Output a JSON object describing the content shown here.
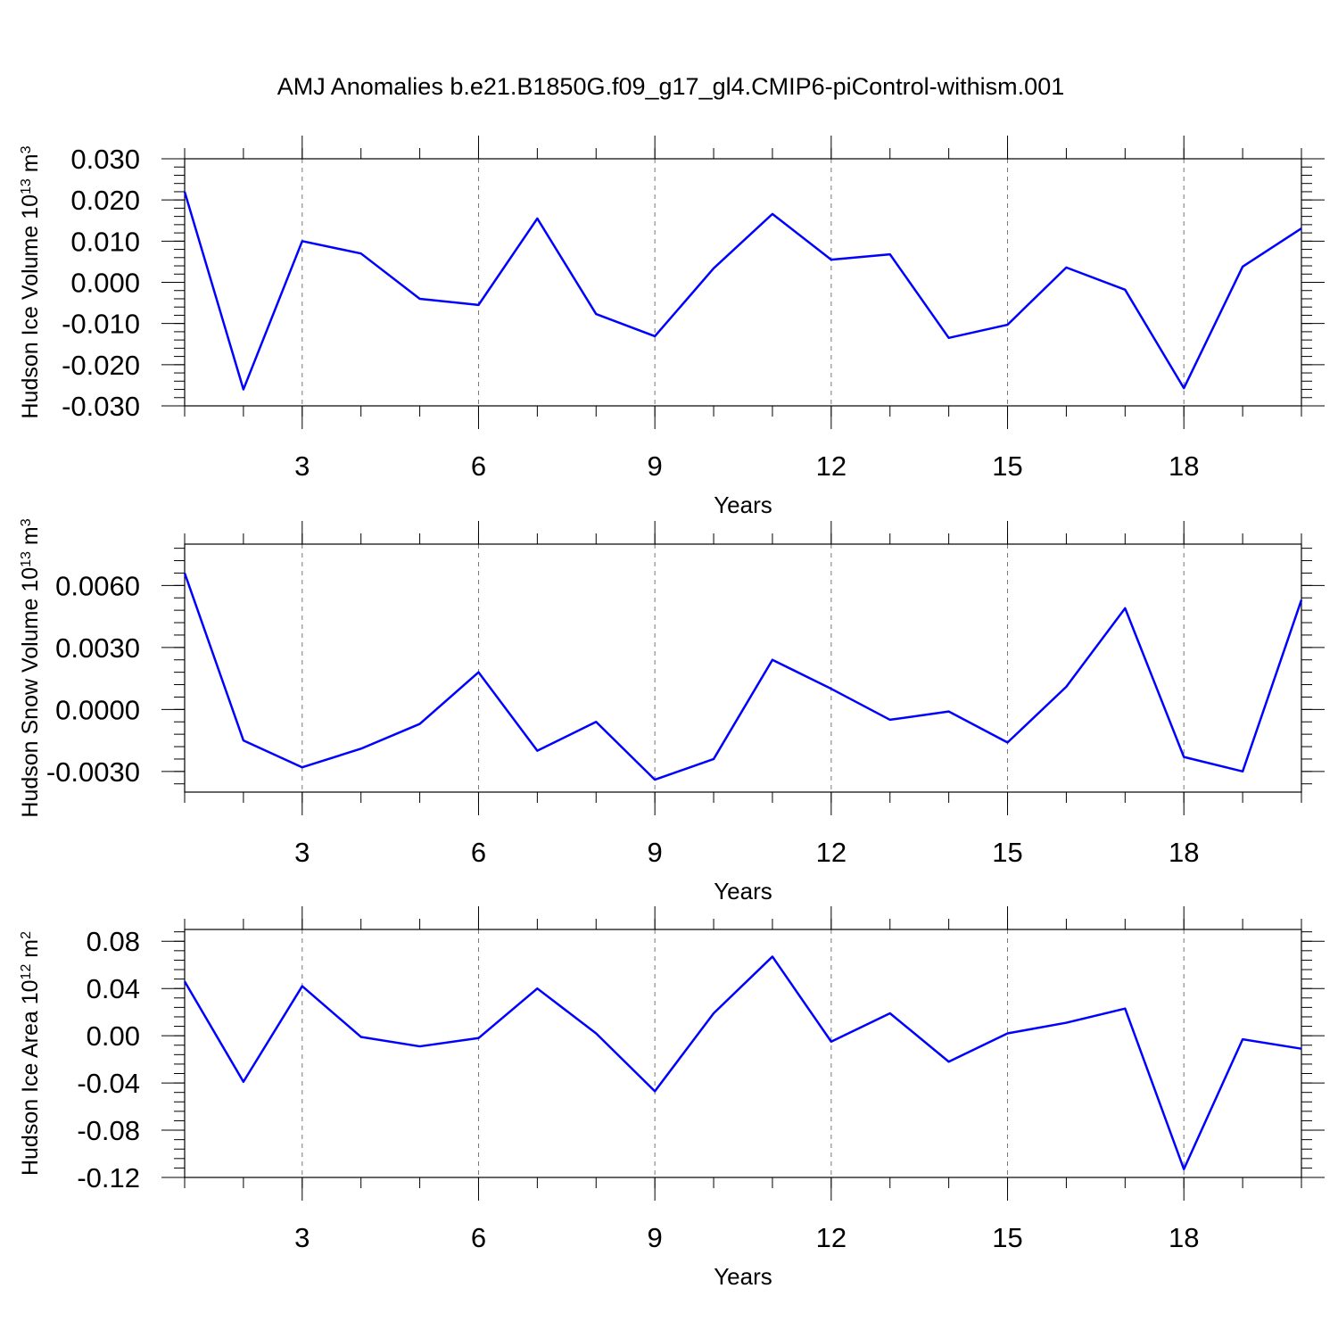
{
  "chart_data": [
    {
      "type": "line",
      "title": "AMJ Anomalies b.e21.B1850G.f09_g17_gl4.CMIP6-piControl-withism.001",
      "xlabel": "Years",
      "ylabel": [
        {
          "text": "Hudson Ice Volume 10"
        },
        {
          "text": "13",
          "sup": true
        },
        {
          "text": " m"
        },
        {
          "text": "3",
          "sup": true
        }
      ],
      "x": [
        1,
        2,
        3,
        4,
        5,
        6,
        7,
        8,
        9,
        10,
        11,
        12,
        13,
        14,
        15,
        16,
        17,
        18,
        19,
        20
      ],
      "values": [
        0.022,
        -0.026,
        0.01,
        0.007,
        -0.004,
        -0.0055,
        0.0155,
        -0.0077,
        -0.0131,
        0.0034,
        0.0166,
        0.0055,
        0.0068,
        -0.0135,
        -0.0103,
        0.0036,
        -0.0018,
        -0.0257,
        0.0038,
        0.0131
      ],
      "color": "#0000ff",
      "xgrid": true,
      "xlim": [
        1,
        20
      ],
      "xticks": [
        3,
        6,
        9,
        12,
        15,
        18
      ],
      "ylim": [
        -0.03,
        0.03
      ],
      "yticks": [
        {
          "value": -0.03,
          "label": "-0.030"
        },
        {
          "value": -0.02,
          "label": "-0.020"
        },
        {
          "value": -0.01,
          "label": "-0.010"
        },
        {
          "value": 0,
          "label": "0.000"
        },
        {
          "value": 0.01,
          "label": "0.010"
        },
        {
          "value": 0.02,
          "label": "0.020"
        },
        {
          "value": 0.03,
          "label": "0.030"
        }
      ]
    },
    {
      "type": "line",
      "xlabel": "Years",
      "ylabel": [
        {
          "text": "Hudson Snow Volume 10"
        },
        {
          "text": "13",
          "sup": true
        },
        {
          "text": " m"
        },
        {
          "text": "3",
          "sup": true
        }
      ],
      "x": [
        1,
        2,
        3,
        4,
        5,
        6,
        7,
        8,
        9,
        10,
        11,
        12,
        13,
        14,
        15,
        16,
        17,
        18,
        19,
        20
      ],
      "values": [
        0.0066,
        -0.0015,
        -0.0028,
        -0.0019,
        -0.0007,
        0.0018,
        -0.002,
        -0.0006,
        -0.0034,
        -0.0024,
        0.0024,
        0.001,
        -0.0005,
        -0.0001,
        -0.0016,
        0.0011,
        0.0049,
        -0.0023,
        -0.003,
        0.0053
      ],
      "color": "#0000ff",
      "xgrid": true,
      "xlim": [
        1,
        20
      ],
      "xticks": [
        3,
        6,
        9,
        12,
        15,
        18
      ],
      "ylim": [
        -0.004,
        0.008
      ],
      "yticks": [
        {
          "value": -0.003,
          "label": "-0.0030"
        },
        {
          "value": 0,
          "label": "0.0000"
        },
        {
          "value": 0.003,
          "label": "0.0030"
        },
        {
          "value": 0.006,
          "label": "0.0060"
        }
      ]
    },
    {
      "type": "line",
      "xlabel": "Years",
      "ylabel": [
        {
          "text": "Hudson Ice Area 10"
        },
        {
          "text": "12",
          "sup": true
        },
        {
          "text": " m"
        },
        {
          "text": "2",
          "sup": true
        }
      ],
      "x": [
        1,
        2,
        3,
        4,
        5,
        6,
        7,
        8,
        9,
        10,
        11,
        12,
        13,
        14,
        15,
        16,
        17,
        18,
        19,
        20
      ],
      "values": [
        0.046,
        -0.039,
        0.042,
        -0.001,
        -0.009,
        -0.002,
        0.04,
        0.002,
        -0.047,
        0.019,
        0.067,
        -0.005,
        0.019,
        -0.022,
        0.002,
        0.011,
        0.023,
        -0.113,
        -0.003,
        -0.011
      ],
      "color": "#0000ff",
      "xgrid": true,
      "xlim": [
        1,
        20
      ],
      "xticks": [
        3,
        6,
        9,
        12,
        15,
        18
      ],
      "ylim": [
        -0.12,
        0.09
      ],
      "yticks": [
        {
          "value": -0.12,
          "label": "-0.12"
        },
        {
          "value": -0.08,
          "label": "-0.08"
        },
        {
          "value": -0.04,
          "label": "-0.04"
        },
        {
          "value": 0,
          "label": "0.00"
        },
        {
          "value": 0.04,
          "label": "0.04"
        },
        {
          "value": 0.08,
          "label": "0.08"
        }
      ]
    }
  ]
}
